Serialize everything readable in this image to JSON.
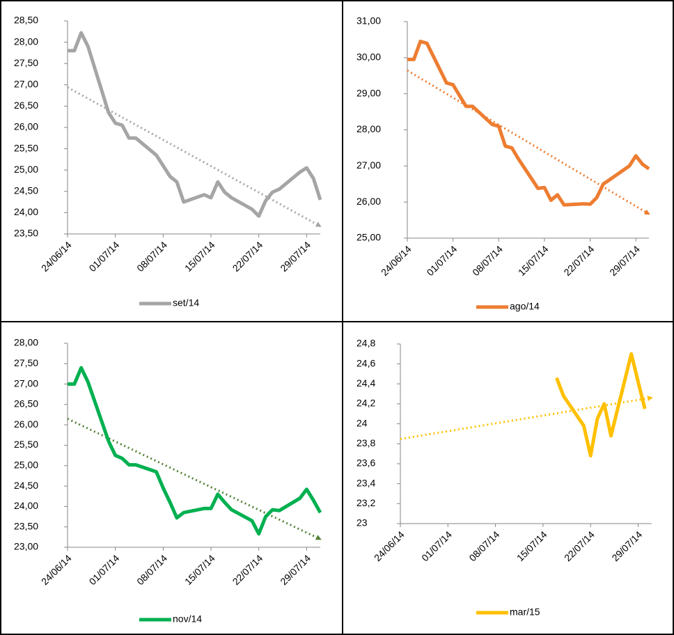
{
  "chart_data": [
    {
      "type": "line",
      "trendline": true,
      "trend_color": "#a5a5a5",
      "x": [
        "24/06/14",
        "25/06/14",
        "26/06/14",
        "27/06/14",
        "30/06/14",
        "01/07/14",
        "02/07/14",
        "03/07/14",
        "04/07/14",
        "07/07/14",
        "08/07/14",
        "09/07/14",
        "10/07/14",
        "11/07/14",
        "14/07/14",
        "15/07/14",
        "16/07/14",
        "17/07/14",
        "18/07/14",
        "21/07/14",
        "22/07/14",
        "23/07/14",
        "24/07/14",
        "25/07/14",
        "28/07/14",
        "29/07/14",
        "30/07/14",
        "31/07/14"
      ],
      "series": [
        {
          "name": "set/14",
          "color": "#a5a5a5",
          "values": [
            27.8,
            27.8,
            28.22,
            27.9,
            26.35,
            26.1,
            26.05,
            25.75,
            25.75,
            25.35,
            25.1,
            24.85,
            24.72,
            24.25,
            24.42,
            24.35,
            24.72,
            24.48,
            24.35,
            24.08,
            23.92,
            24.28,
            24.48,
            24.55,
            24.95,
            25.05,
            24.8,
            24.3
          ]
        }
      ],
      "xlim": [
        "24/06/14",
        "31/07/14"
      ],
      "xticks": [
        "24/06/14",
        "01/07/14",
        "08/07/14",
        "15/07/14",
        "22/07/14",
        "29/07/14"
      ],
      "ylim": [
        23.5,
        28.5
      ],
      "yticks": [
        {
          "value": 23.5,
          "label": "23,50"
        },
        {
          "value": 24,
          "label": "24,00"
        },
        {
          "value": 24.5,
          "label": "24,50"
        },
        {
          "value": 25,
          "label": "25,00"
        },
        {
          "value": 25.5,
          "label": "25,50"
        },
        {
          "value": 26,
          "label": "26,00"
        },
        {
          "value": 26.5,
          "label": "26,50"
        },
        {
          "value": 27,
          "label": "27,00"
        },
        {
          "value": 27.5,
          "label": "27,50"
        },
        {
          "value": 28,
          "label": "28,00"
        },
        {
          "value": 28.5,
          "label": "28,50"
        }
      ]
    },
    {
      "type": "line",
      "trendline": true,
      "trend_color": "#ed7d31",
      "x": [
        "24/06/14",
        "25/06/14",
        "26/06/14",
        "27/06/14",
        "30/06/14",
        "01/07/14",
        "02/07/14",
        "03/07/14",
        "04/07/14",
        "07/07/14",
        "08/07/14",
        "09/07/14",
        "10/07/14",
        "11/07/14",
        "14/07/14",
        "15/07/14",
        "16/07/14",
        "17/07/14",
        "18/07/14",
        "21/07/14",
        "22/07/14",
        "23/07/14",
        "24/07/14",
        "25/07/14",
        "28/07/14",
        "29/07/14",
        "30/07/14",
        "31/07/14"
      ],
      "series": [
        {
          "name": "ago/14",
          "color": "#ed7d31",
          "values": [
            29.95,
            29.95,
            30.45,
            30.4,
            29.3,
            29.25,
            28.95,
            28.65,
            28.65,
            28.15,
            28.1,
            27.55,
            27.5,
            27.2,
            26.38,
            26.4,
            26.05,
            26.2,
            25.92,
            25.95,
            25.94,
            26.12,
            26.5,
            26.62,
            27.0,
            27.28,
            27.05,
            26.92
          ]
        }
      ],
      "xlim": [
        "24/06/14",
        "31/07/14"
      ],
      "xticks": [
        "24/06/14",
        "01/07/14",
        "08/07/14",
        "15/07/14",
        "22/07/14",
        "29/07/14"
      ],
      "ylim": [
        25,
        31
      ],
      "yticks": [
        {
          "value": 25,
          "label": "25,00"
        },
        {
          "value": 26,
          "label": "26,00"
        },
        {
          "value": 27,
          "label": "27,00"
        },
        {
          "value": 28,
          "label": "28,00"
        },
        {
          "value": 29,
          "label": "29,00"
        },
        {
          "value": 30,
          "label": "30,00"
        },
        {
          "value": 31,
          "label": "31,00"
        }
      ]
    },
    {
      "type": "line",
      "trendline": true,
      "trend_color": "#548235",
      "x": [
        "24/06/14",
        "25/06/14",
        "26/06/14",
        "27/06/14",
        "30/06/14",
        "01/07/14",
        "02/07/14",
        "03/07/14",
        "04/07/14",
        "07/07/14",
        "08/07/14",
        "09/07/14",
        "10/07/14",
        "11/07/14",
        "14/07/14",
        "15/07/14",
        "16/07/14",
        "17/07/14",
        "18/07/14",
        "21/07/14",
        "22/07/14",
        "23/07/14",
        "24/07/14",
        "25/07/14",
        "28/07/14",
        "29/07/14",
        "30/07/14",
        "31/07/14"
      ],
      "series": [
        {
          "name": "nov/14",
          "color": "#00b050",
          "values": [
            27.0,
            27.0,
            27.4,
            27.05,
            25.6,
            25.25,
            25.18,
            25.02,
            25.02,
            24.85,
            24.45,
            24.1,
            23.72,
            23.85,
            23.95,
            23.95,
            24.3,
            24.1,
            23.92,
            23.65,
            23.33,
            23.75,
            23.92,
            23.9,
            24.2,
            24.42,
            24.15,
            23.85
          ]
        }
      ],
      "xlim": [
        "24/06/14",
        "31/07/14"
      ],
      "xticks": [
        "24/06/14",
        "01/07/14",
        "08/07/14",
        "15/07/14",
        "22/07/14",
        "29/07/14"
      ],
      "ylim": [
        23,
        28
      ],
      "yticks": [
        {
          "value": 23,
          "label": "23,00"
        },
        {
          "value": 23.5,
          "label": "23,50"
        },
        {
          "value": 24,
          "label": "24,00"
        },
        {
          "value": 24.5,
          "label": "24,50"
        },
        {
          "value": 25,
          "label": "25,00"
        },
        {
          "value": 25.5,
          "label": "25,50"
        },
        {
          "value": 26,
          "label": "26,00"
        },
        {
          "value": 26.5,
          "label": "26,50"
        },
        {
          "value": 27,
          "label": "27,00"
        },
        {
          "value": 27.5,
          "label": "27,50"
        },
        {
          "value": 28,
          "label": "28,00"
        }
      ]
    },
    {
      "type": "line",
      "trendline": true,
      "trend_color": "#ffc000",
      "x": [
        "24/06/14",
        "25/06/14",
        "26/06/14",
        "27/06/14",
        "30/06/14",
        "01/07/14",
        "02/07/14",
        "03/07/14",
        "04/07/14",
        "07/07/14",
        "08/07/14",
        "09/07/14",
        "10/07/14",
        "11/07/14",
        "14/07/14",
        "15/07/14",
        "16/07/14",
        "17/07/14",
        "18/07/14",
        "21/07/14",
        "22/07/14",
        "23/07/14",
        "24/07/14",
        "25/07/14",
        "28/07/14",
        "29/07/14",
        "30/07/14",
        "31/07/14"
      ],
      "series": [
        {
          "name": "mar/15",
          "color": "#ffc000",
          "values": [
            null,
            null,
            null,
            null,
            null,
            null,
            null,
            null,
            null,
            null,
            null,
            null,
            null,
            null,
            null,
            null,
            null,
            24.46,
            24.28,
            23.98,
            23.68,
            24.05,
            24.2,
            23.88,
            24.7,
            24.42,
            24.15,
            null
          ]
        }
      ],
      "xlim": [
        "24/06/14",
        "31/07/14"
      ],
      "xticks": [
        "24/06/14",
        "01/07/14",
        "08/07/14",
        "15/07/14",
        "22/07/14",
        "29/07/14"
      ],
      "ylim": [
        23,
        24.8
      ],
      "yticks": [
        23,
        {
          "value": 23.2,
          "label": "23,2"
        },
        {
          "value": 23.4,
          "label": "23,4"
        },
        {
          "value": 23.6,
          "label": "23,6"
        },
        {
          "value": 23.8,
          "label": "23,8"
        },
        24,
        {
          "value": 24.2,
          "label": "24,2"
        },
        {
          "value": 24.4,
          "label": "24,4"
        },
        {
          "value": 24.6,
          "label": "24,6"
        },
        {
          "value": 24.8,
          "label": "24,8"
        }
      ]
    }
  ]
}
